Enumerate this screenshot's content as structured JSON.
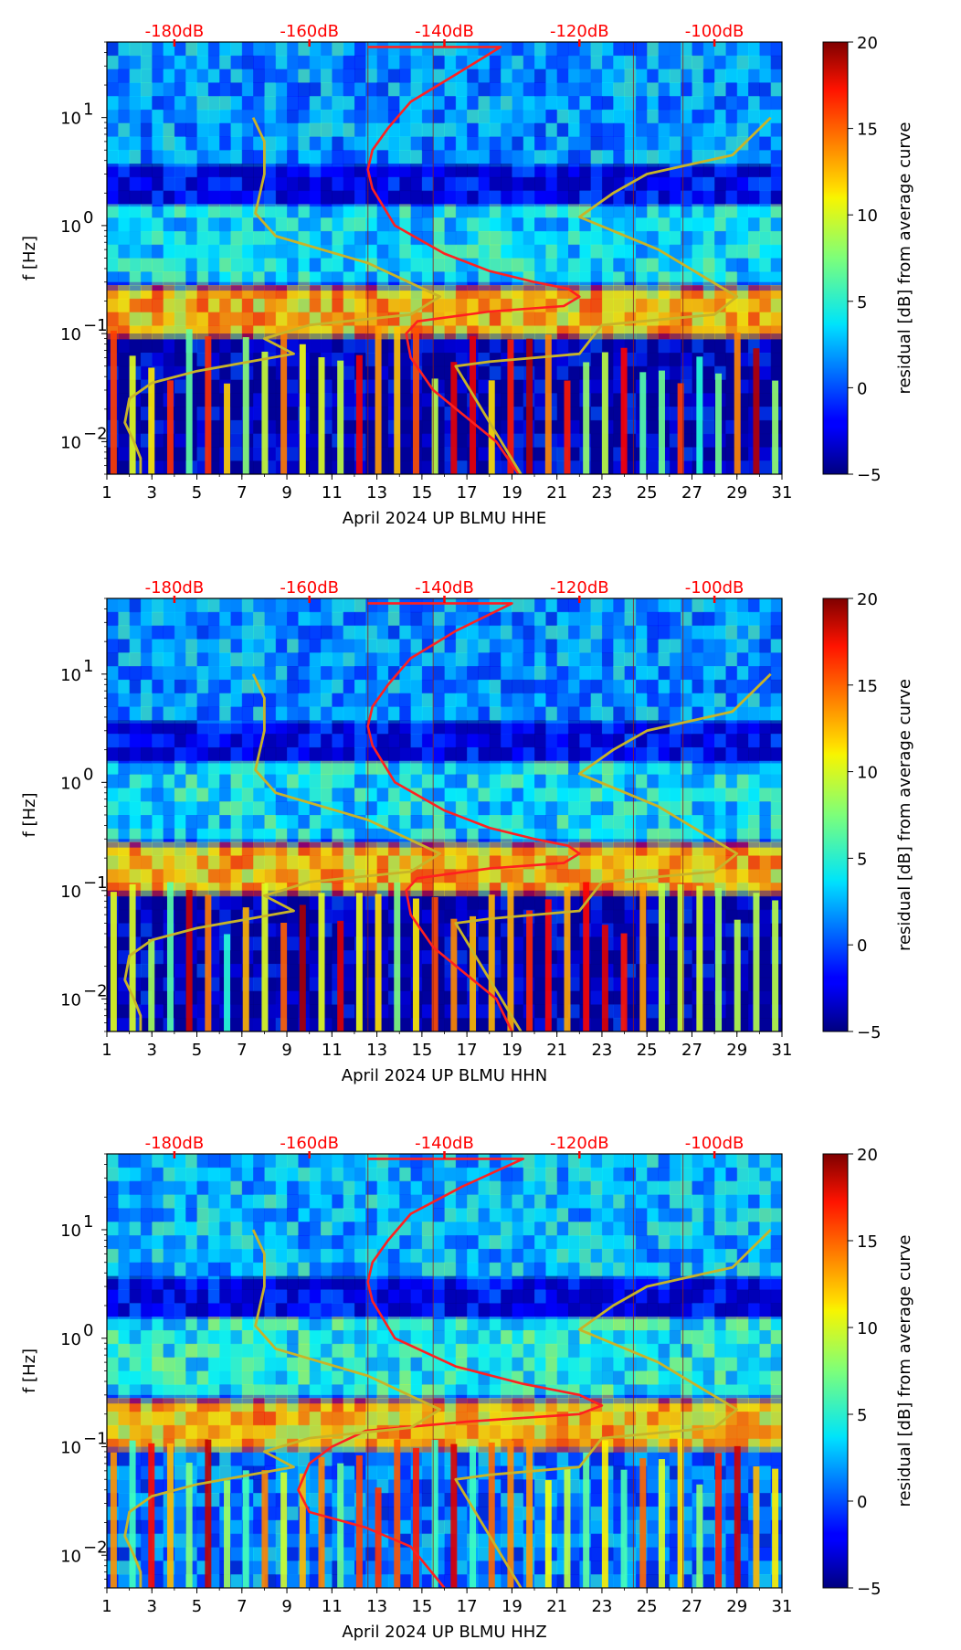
{
  "chart_data": [
    {
      "type": "heatmap",
      "title": "",
      "xlabel": "April 2024 UP BLMU  HHE",
      "ylabel": "f [Hz]",
      "x_ticks": [
        1,
        3,
        5,
        7,
        9,
        11,
        13,
        15,
        17,
        19,
        21,
        23,
        25,
        27,
        29,
        31
      ],
      "xlim": [
        1,
        31
      ],
      "ylim": [
        0.005,
        50
      ],
      "y_ticks": [
        {
          "value": 0.01,
          "label": "10",
          "exp": "−2"
        },
        {
          "value": 0.1,
          "label": "10",
          "exp": "−1"
        },
        {
          "value": 1,
          "label": "10",
          "exp": "0"
        },
        {
          "value": 10,
          "label": "10",
          "exp": "1"
        }
      ],
      "colorbar": {
        "label": "residual [dB] from average curve",
        "min": -5,
        "max": 20,
        "ticks": [
          "20",
          "15",
          "10",
          "5",
          "0",
          "−5"
        ]
      },
      "db_axis": {
        "labels": [
          "-180dB",
          "-160dB",
          "-140dB",
          "-120dB",
          "-100dB"
        ],
        "positions_day": [
          4,
          10,
          16,
          22,
          28
        ]
      },
      "series": [
        {
          "name": "average spectrum",
          "color": "#ff2020",
          "points": [
            [
              12.6,
              45
            ],
            [
              18.5,
              45
            ],
            [
              16.5,
              25
            ],
            [
              14.5,
              14
            ],
            [
              13.5,
              8
            ],
            [
              12.8,
              5
            ],
            [
              12.6,
              3.3
            ],
            [
              12.8,
              2.2
            ],
            [
              13.8,
              1
            ],
            [
              16,
              0.55
            ],
            [
              18,
              0.38
            ],
            [
              20,
              0.3
            ],
            [
              21.5,
              0.26
            ],
            [
              22,
              0.22
            ],
            [
              21.3,
              0.18
            ],
            [
              18,
              0.16
            ],
            [
              14.8,
              0.13
            ],
            [
              14.3,
              0.1
            ],
            [
              14.5,
              0.06
            ],
            [
              15.5,
              0.03
            ],
            [
              16.8,
              0.018
            ],
            [
              18.3,
              0.01
            ],
            [
              19.3,
              0.005
            ]
          ]
        },
        {
          "name": "reference limits",
          "color": "#c8b428",
          "points": [
            [
              7.5,
              10
            ],
            [
              8,
              6
            ],
            [
              8,
              3
            ],
            [
              7.6,
              1.3
            ],
            [
              8.5,
              0.8
            ],
            [
              12.6,
              0.45
            ],
            [
              15.8,
              0.22
            ],
            [
              14.5,
              0.15
            ],
            [
              10,
              0.12
            ],
            [
              8,
              0.09
            ],
            [
              9.3,
              0.065
            ],
            [
              5,
              0.045
            ],
            [
              3,
              0.035
            ],
            [
              2,
              0.025
            ],
            [
              1.8,
              0.015
            ],
            [
              2.2,
              0.01
            ],
            [
              2.5,
              0.007
            ],
            [
              2.5,
              0.005
            ]
          ]
        },
        {
          "name": "reference limits",
          "color": "#c8b428",
          "points": [
            [
              30.5,
              10
            ],
            [
              28.8,
              4.5
            ],
            [
              25,
              3
            ],
            [
              23.5,
              2
            ],
            [
              22,
              1.2
            ],
            [
              25.5,
              0.6
            ],
            [
              29,
              0.22
            ],
            [
              28,
              0.15
            ],
            [
              23,
              0.12
            ],
            [
              22,
              0.065
            ],
            [
              18,
              0.055
            ],
            [
              16.5,
              0.05
            ],
            [
              19.4,
              0.005
            ]
          ]
        }
      ],
      "bands": [
        {
          "f_low": 0.1,
          "f_high": 0.25,
          "level": 12
        },
        {
          "f_low": 0.3,
          "f_high": 1.5,
          "level": 4
        },
        {
          "f_low": 3.5,
          "f_high": 50,
          "level": 2
        },
        {
          "f_low": 0.005,
          "f_high": 0.1,
          "level": -4
        }
      ]
    },
    {
      "type": "heatmap",
      "title": "",
      "xlabel": "April 2024 UP BLMU  HHN",
      "ylabel": "f [Hz]",
      "x_ticks": [
        1,
        3,
        5,
        7,
        9,
        11,
        13,
        15,
        17,
        19,
        21,
        23,
        25,
        27,
        29,
        31
      ],
      "xlim": [
        1,
        31
      ],
      "ylim": [
        0.005,
        50
      ],
      "y_ticks": [
        {
          "value": 0.01,
          "label": "10",
          "exp": "−2"
        },
        {
          "value": 0.1,
          "label": "10",
          "exp": "−1"
        },
        {
          "value": 1,
          "label": "10",
          "exp": "0"
        },
        {
          "value": 10,
          "label": "10",
          "exp": "1"
        }
      ],
      "colorbar": {
        "label": "residual [dB] from average curve",
        "min": -5,
        "max": 20,
        "ticks": [
          "20",
          "15",
          "10",
          "5",
          "0",
          "−5"
        ]
      },
      "db_axis": {
        "labels": [
          "-180dB",
          "-160dB",
          "-140dB",
          "-120dB",
          "-100dB"
        ],
        "positions_day": [
          4,
          10,
          16,
          22,
          28
        ]
      },
      "series": [
        {
          "name": "average spectrum",
          "color": "#ff2020",
          "points": [
            [
              12.6,
              45
            ],
            [
              19,
              45
            ],
            [
              16.5,
              25
            ],
            [
              14.5,
              14
            ],
            [
              13.5,
              8
            ],
            [
              12.8,
              5
            ],
            [
              12.6,
              3.3
            ],
            [
              12.8,
              2.2
            ],
            [
              13.8,
              1
            ],
            [
              16,
              0.55
            ],
            [
              18,
              0.38
            ],
            [
              20,
              0.3
            ],
            [
              21.5,
              0.26
            ],
            [
              22,
              0.22
            ],
            [
              21.3,
              0.18
            ],
            [
              18,
              0.16
            ],
            [
              14.8,
              0.13
            ],
            [
              14.3,
              0.1
            ],
            [
              14.5,
              0.06
            ],
            [
              15.5,
              0.03
            ],
            [
              16.8,
              0.018
            ],
            [
              18.3,
              0.01
            ],
            [
              19,
              0.005
            ]
          ]
        },
        {
          "name": "reference limits",
          "color": "#c8b428",
          "points": [
            [
              7.5,
              10
            ],
            [
              8,
              6
            ],
            [
              8,
              3
            ],
            [
              7.6,
              1.3
            ],
            [
              8.5,
              0.8
            ],
            [
              12.6,
              0.45
            ],
            [
              15.8,
              0.22
            ],
            [
              14.5,
              0.15
            ],
            [
              10,
              0.12
            ],
            [
              8,
              0.09
            ],
            [
              9.3,
              0.065
            ],
            [
              5,
              0.045
            ],
            [
              3,
              0.035
            ],
            [
              2,
              0.025
            ],
            [
              1.8,
              0.015
            ],
            [
              2.2,
              0.01
            ],
            [
              2.5,
              0.007
            ],
            [
              2.5,
              0.005
            ]
          ]
        },
        {
          "name": "reference limits",
          "color": "#c8b428",
          "points": [
            [
              30.5,
              10
            ],
            [
              28.8,
              4.5
            ],
            [
              25,
              3
            ],
            [
              23.5,
              2
            ],
            [
              22,
              1.2
            ],
            [
              25.5,
              0.6
            ],
            [
              29,
              0.22
            ],
            [
              28,
              0.15
            ],
            [
              23,
              0.12
            ],
            [
              22,
              0.065
            ],
            [
              18,
              0.055
            ],
            [
              16.5,
              0.05
            ],
            [
              19.4,
              0.005
            ]
          ]
        }
      ],
      "bands": [
        {
          "f_low": 0.1,
          "f_high": 0.25,
          "level": 12
        },
        {
          "f_low": 0.3,
          "f_high": 1.5,
          "level": 4
        },
        {
          "f_low": 3.5,
          "f_high": 50,
          "level": 2
        },
        {
          "f_low": 0.005,
          "f_high": 0.1,
          "level": -4
        }
      ]
    },
    {
      "type": "heatmap",
      "title": "",
      "xlabel": "April 2024 UP BLMU  HHZ",
      "ylabel": "f [Hz]",
      "x_ticks": [
        1,
        3,
        5,
        7,
        9,
        11,
        13,
        15,
        17,
        19,
        21,
        23,
        25,
        27,
        29,
        31
      ],
      "xlim": [
        1,
        31
      ],
      "ylim": [
        0.005,
        50
      ],
      "y_ticks": [
        {
          "value": 0.01,
          "label": "10",
          "exp": "−2"
        },
        {
          "value": 0.1,
          "label": "10",
          "exp": "−1"
        },
        {
          "value": 1,
          "label": "10",
          "exp": "0"
        },
        {
          "value": 10,
          "label": "10",
          "exp": "1"
        }
      ],
      "colorbar": {
        "label": "residual [dB] from average curve",
        "min": -5,
        "max": 20,
        "ticks": [
          "20",
          "15",
          "10",
          "5",
          "0",
          "−5"
        ]
      },
      "db_axis": {
        "labels": [
          "-180dB",
          "-160dB",
          "-140dB",
          "-120dB",
          "-100dB"
        ],
        "positions_day": [
          4,
          10,
          16,
          22,
          28
        ]
      },
      "series": [
        {
          "name": "average spectrum",
          "color": "#ff2020",
          "points": [
            [
              12.6,
              45
            ],
            [
              19.5,
              45
            ],
            [
              16.8,
              25
            ],
            [
              14.5,
              14
            ],
            [
              13.5,
              8
            ],
            [
              12.8,
              5
            ],
            [
              12.6,
              3.3
            ],
            [
              12.8,
              2.2
            ],
            [
              13.8,
              1
            ],
            [
              16.5,
              0.55
            ],
            [
              19.5,
              0.38
            ],
            [
              22,
              0.3
            ],
            [
              23,
              0.24
            ],
            [
              22,
              0.2
            ],
            [
              17,
              0.17
            ],
            [
              12.5,
              0.14
            ],
            [
              11,
              0.1
            ],
            [
              10,
              0.07
            ],
            [
              9.5,
              0.04
            ],
            [
              10,
              0.025
            ],
            [
              12.5,
              0.018
            ],
            [
              14.5,
              0.012
            ],
            [
              16,
              0.005
            ]
          ]
        },
        {
          "name": "reference limits",
          "color": "#c8b428",
          "points": [
            [
              7.5,
              10
            ],
            [
              8,
              6
            ],
            [
              8,
              3
            ],
            [
              7.6,
              1.3
            ],
            [
              8.5,
              0.8
            ],
            [
              12.6,
              0.45
            ],
            [
              15.8,
              0.22
            ],
            [
              14.5,
              0.15
            ],
            [
              10,
              0.12
            ],
            [
              8,
              0.09
            ],
            [
              9.3,
              0.065
            ],
            [
              5,
              0.045
            ],
            [
              3,
              0.035
            ],
            [
              2,
              0.025
            ],
            [
              1.8,
              0.015
            ],
            [
              2.2,
              0.01
            ],
            [
              2.5,
              0.007
            ],
            [
              2.5,
              0.005
            ]
          ]
        },
        {
          "name": "reference limits",
          "color": "#c8b428",
          "points": [
            [
              30.5,
              10
            ],
            [
              28.8,
              4.5
            ],
            [
              25,
              3
            ],
            [
              23.5,
              2
            ],
            [
              22,
              1.2
            ],
            [
              25.5,
              0.6
            ],
            [
              29,
              0.22
            ],
            [
              28,
              0.15
            ],
            [
              23,
              0.12
            ],
            [
              22,
              0.065
            ],
            [
              18,
              0.055
            ],
            [
              16.5,
              0.05
            ],
            [
              19.4,
              0.005
            ]
          ]
        }
      ],
      "bands": [
        {
          "f_low": 0.1,
          "f_high": 0.25,
          "level": 12
        },
        {
          "f_low": 0.3,
          "f_high": 1.5,
          "level": 5
        },
        {
          "f_low": 3.5,
          "f_high": 50,
          "level": 3
        },
        {
          "f_low": 0.005,
          "f_high": 0.1,
          "level": 1
        }
      ]
    }
  ]
}
